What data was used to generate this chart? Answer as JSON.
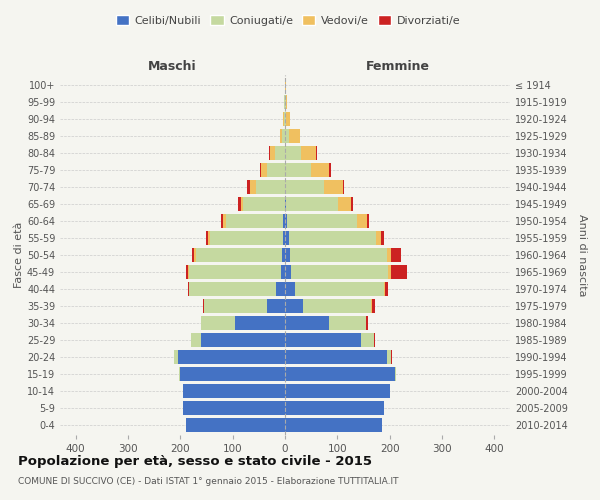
{
  "age_groups": [
    "0-4",
    "5-9",
    "10-14",
    "15-19",
    "20-24",
    "25-29",
    "30-34",
    "35-39",
    "40-44",
    "45-49",
    "50-54",
    "55-59",
    "60-64",
    "65-69",
    "70-74",
    "75-79",
    "80-84",
    "85-89",
    "90-94",
    "95-99",
    "100+"
  ],
  "birth_years": [
    "2010-2014",
    "2005-2009",
    "2000-2004",
    "1995-1999",
    "1990-1994",
    "1985-1989",
    "1980-1984",
    "1975-1979",
    "1970-1974",
    "1965-1969",
    "1960-1964",
    "1955-1959",
    "1950-1954",
    "1945-1949",
    "1940-1944",
    "1935-1939",
    "1930-1934",
    "1925-1929",
    "1920-1924",
    "1915-1919",
    "≤ 1914"
  ],
  "male_celibi": [
    190,
    195,
    195,
    200,
    205,
    160,
    95,
    35,
    18,
    8,
    6,
    4,
    3,
    0,
    0,
    0,
    0,
    0,
    0,
    0,
    0
  ],
  "male_coniugati": [
    0,
    0,
    0,
    2,
    8,
    20,
    65,
    120,
    165,
    175,
    165,
    140,
    110,
    80,
    55,
    35,
    20,
    5,
    2,
    1,
    0
  ],
  "male_vedovi": [
    0,
    0,
    0,
    0,
    0,
    0,
    0,
    0,
    0,
    2,
    2,
    3,
    5,
    5,
    12,
    10,
    8,
    4,
    1,
    0,
    0
  ],
  "male_divorziati": [
    0,
    0,
    0,
    0,
    0,
    0,
    1,
    2,
    3,
    4,
    4,
    4,
    5,
    5,
    5,
    2,
    2,
    0,
    0,
    0,
    0
  ],
  "female_celibi": [
    185,
    190,
    200,
    210,
    195,
    145,
    85,
    35,
    20,
    12,
    10,
    8,
    3,
    2,
    0,
    0,
    0,
    0,
    0,
    0,
    0
  ],
  "female_coniugati": [
    0,
    0,
    0,
    3,
    8,
    25,
    70,
    130,
    170,
    185,
    185,
    165,
    135,
    100,
    75,
    50,
    30,
    8,
    2,
    1,
    0
  ],
  "female_vedovi": [
    0,
    0,
    0,
    0,
    0,
    0,
    0,
    2,
    2,
    5,
    8,
    10,
    18,
    25,
    35,
    35,
    30,
    20,
    8,
    2,
    1
  ],
  "female_divorziati": [
    0,
    0,
    0,
    0,
    1,
    2,
    3,
    5,
    5,
    32,
    18,
    6,
    5,
    3,
    3,
    2,
    2,
    0,
    0,
    0,
    0
  ],
  "colors": {
    "celibi": "#4472C4",
    "coniugati": "#c5d9a0",
    "vedovi": "#f0c060",
    "divorziati": "#cc2222"
  },
  "title": "Popolazione per età, sesso e stato civile - 2015",
  "subtitle": "COMUNE DI SUCCIVO (CE) - Dati ISTAT 1° gennaio 2015 - Elaborazione TUTTITALIA.IT",
  "xlabel_left": "Maschi",
  "xlabel_right": "Femmine",
  "ylabel_left": "Fasce di età",
  "ylabel_right": "Anni di nascita",
  "xlim": 430,
  "bg_color": "#f5f5f0",
  "bar_height": 0.82
}
